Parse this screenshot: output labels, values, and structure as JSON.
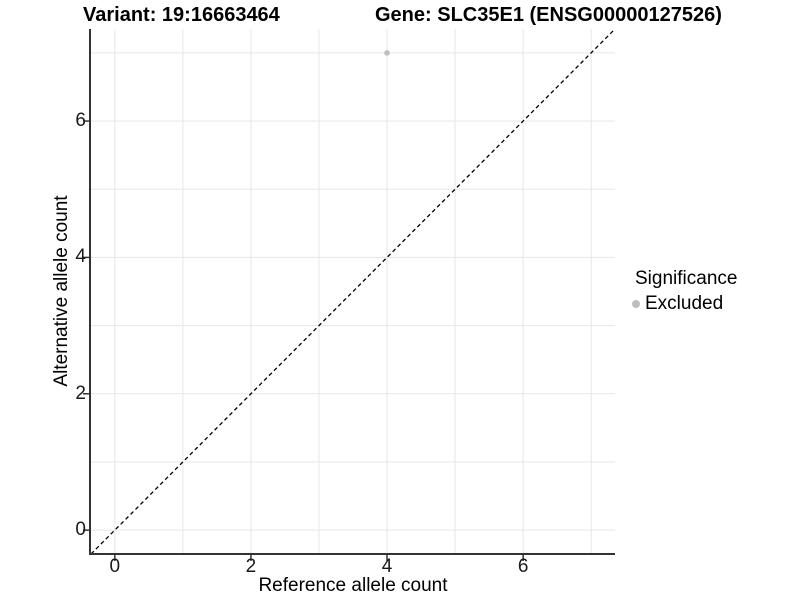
{
  "header": {
    "variant_title": "Variant: 19:16663464",
    "gene_title": "Gene: SLC35E1 (ENSG00000127526)"
  },
  "chart_data": {
    "type": "scatter",
    "xlabel": "Reference allele count",
    "ylabel": "Alternative allele count",
    "xlim": [
      -0.35,
      7.35
    ],
    "ylim": [
      -0.35,
      7.35
    ],
    "x_ticks": [
      0,
      2,
      4,
      6
    ],
    "y_ticks": [
      0,
      2,
      4,
      6
    ],
    "gridline_values": [
      0,
      1,
      2,
      3,
      4,
      5,
      6,
      7
    ],
    "grid_on": true,
    "grid_color": "#e7e7e7",
    "axis_color": "#333333",
    "identity_line": {
      "type": "abline",
      "slope": 1,
      "intercept": 0,
      "style": "dashed",
      "color": "#000000"
    },
    "series": [
      {
        "name": "Excluded",
        "color": "#bebebe",
        "points": [
          {
            "x": 4,
            "y": 7
          }
        ]
      }
    ],
    "legend": {
      "position": "right",
      "title": "Significance",
      "items": [
        {
          "label": "Excluded",
          "color": "#bebebe"
        }
      ]
    }
  }
}
